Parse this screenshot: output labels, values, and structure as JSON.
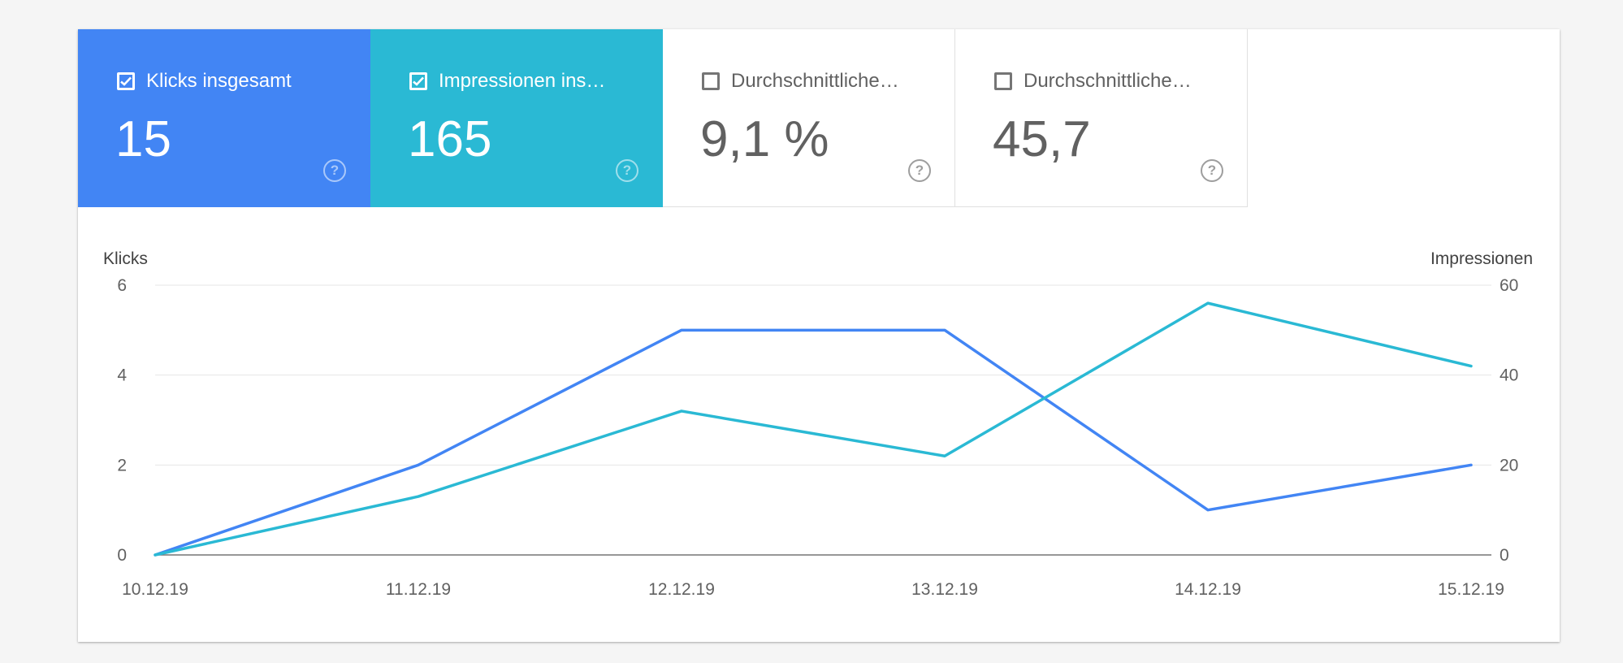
{
  "tiles": [
    {
      "label": "Klicks insgesamt",
      "value": "15",
      "checked": true,
      "help_icon": "question-circle-icon"
    },
    {
      "label": "Impressionen ins…",
      "value": "165",
      "checked": true,
      "help_icon": "question-circle-icon"
    },
    {
      "label": "Durchschnittliche…",
      "value": "9,1 %",
      "checked": false,
      "help_icon": "question-circle-icon"
    },
    {
      "label": "Durchschnittliche…",
      "value": "45,7",
      "checked": false,
      "help_icon": "question-circle-icon"
    }
  ],
  "colors": {
    "clicks": "#4285f4",
    "impressions": "#2ab9d4",
    "grid": "#e6e6e6",
    "baseline": "#757575"
  },
  "chart_data": {
    "type": "line",
    "x": [
      "10.12.19",
      "11.12.19",
      "12.12.19",
      "13.12.19",
      "14.12.19",
      "15.12.19"
    ],
    "series": [
      {
        "name": "Klicks",
        "axis": "left",
        "values": [
          0,
          2,
          5,
          5,
          1,
          2
        ]
      },
      {
        "name": "Impressionen",
        "axis": "right",
        "values": [
          0,
          13,
          32,
          22,
          56,
          42
        ]
      }
    ],
    "ylabel_left": "Klicks",
    "ylabel_right": "Impressionen",
    "ylim_left": [
      0,
      6
    ],
    "ylim_right": [
      0,
      60
    ],
    "yticks_left": [
      0,
      2,
      4,
      6
    ],
    "yticks_right": [
      0,
      20,
      40,
      60
    ],
    "grid": true,
    "legend": "none"
  }
}
